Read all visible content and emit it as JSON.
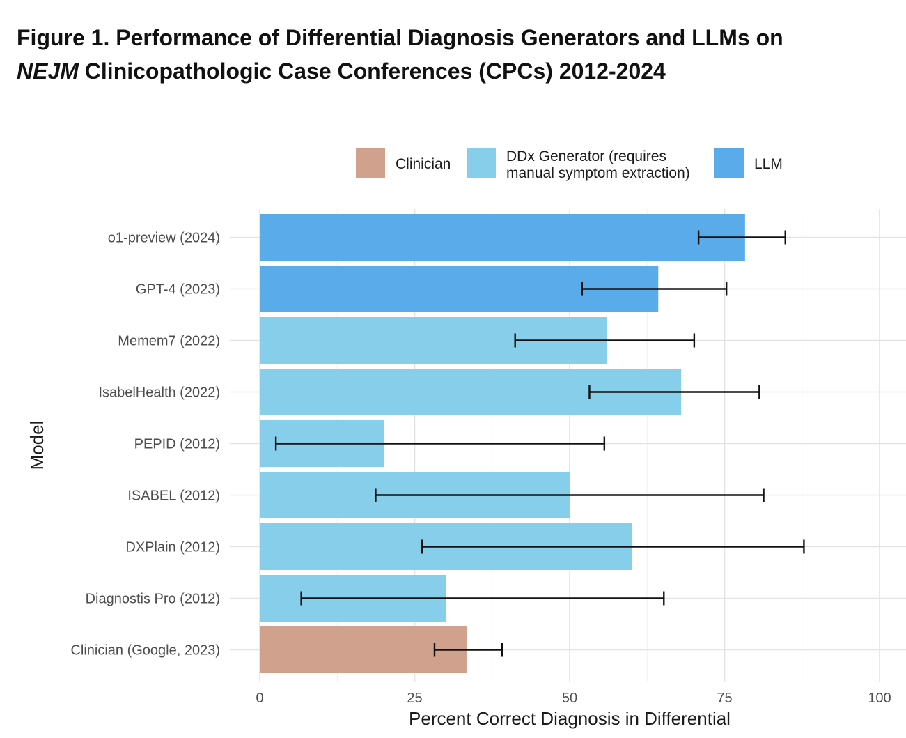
{
  "figure": {
    "title_prefix": "Figure 1. Performance of Differential Diagnosis Generators and LLMs on",
    "title_italic": "NEJM",
    "title_suffix": " Clinicopathologic Case Conferences (CPCs) 2012-2024"
  },
  "chart_data": {
    "type": "bar",
    "orientation": "horizontal",
    "xlabel": "Percent Correct Diagnosis in Differential",
    "ylabel": "Model",
    "xlim": [
      0,
      100
    ],
    "xticks": [
      0,
      25,
      50,
      75,
      100
    ],
    "grid": true,
    "legend_position": "top",
    "legend": [
      {
        "key": "clinician",
        "label_lines": [
          "Clinician"
        ],
        "color": "#d0a28d"
      },
      {
        "key": "ddx",
        "label_lines": [
          "DDx Generator (requires",
          "manual symptom extraction)"
        ],
        "color": "#87ceea"
      },
      {
        "key": "llm",
        "label_lines": [
          "LLM"
        ],
        "color": "#5aabea"
      }
    ],
    "categories": [
      "o1-preview (2024)",
      "GPT-4 (2023)",
      "Memem7 (2022)",
      "IsabelHealth (2022)",
      "PEPID (2012)",
      "ISABEL (2012)",
      "DXPlain (2012)",
      "Diagnostis Pro (2012)",
      "Clinician (Google, 2023)"
    ],
    "groups": [
      "llm",
      "llm",
      "ddx",
      "ddx",
      "ddx",
      "ddx",
      "ddx",
      "ddx",
      "clinician"
    ],
    "values": [
      78.3,
      64.3,
      56.0,
      68.0,
      20.0,
      50.0,
      60.0,
      30.0,
      33.4
    ],
    "ci_low": [
      70.8,
      52.0,
      41.2,
      53.2,
      2.6,
      18.7,
      26.2,
      6.7,
      28.2
    ],
    "ci_high": [
      84.8,
      75.3,
      70.1,
      80.6,
      55.6,
      81.3,
      87.8,
      65.2,
      39.1
    ]
  }
}
